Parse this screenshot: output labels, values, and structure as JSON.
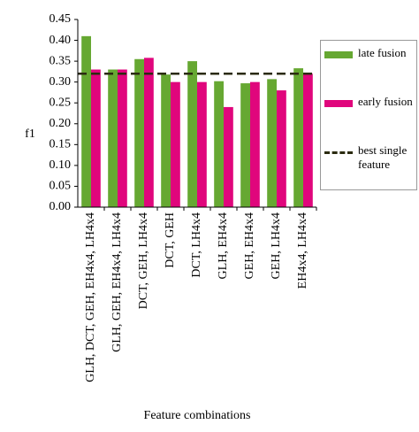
{
  "chart_data": {
    "type": "bar",
    "x_label": "Feature combinations",
    "y_label": "f1",
    "categories": [
      "GLH, DCT, GEH, EH4x4, LH4x4",
      "GLH,  GEH, EH4x4, LH4x4",
      "DCT, GEH, LH4x4",
      "DCT, GEH",
      "DCT, LH4x4",
      "GLH, EH4x4",
      "GEH, EH4x4",
      "GEH, LH4x4",
      "EH4x4, LH4x4"
    ],
    "series": [
      {
        "name": "late fusion",
        "color": "#66a832",
        "values": [
          0.41,
          0.33,
          0.355,
          0.318,
          0.35,
          0.302,
          0.297,
          0.307,
          0.333
        ]
      },
      {
        "name": "early fusion",
        "color": "#e0067c",
        "values": [
          0.33,
          0.33,
          0.358,
          0.3,
          0.3,
          0.24,
          0.3,
          0.28,
          0.32
        ]
      }
    ],
    "reference_line": {
      "name": "best single feature",
      "value": 0.32,
      "color": "#2b2b10"
    },
    "ylim": [
      0,
      0.45
    ],
    "yticks": [
      {
        "value": 0,
        "label": "0.00"
      },
      0.05,
      {
        "value": 0.1,
        "label": "0.10"
      },
      0.15,
      {
        "value": 0.2,
        "label": "0.20"
      },
      0.25,
      {
        "value": 0.3,
        "label": "0.30"
      },
      0.35,
      {
        "value": 0.4,
        "label": "0.40"
      },
      0.45
    ],
    "legend": "right"
  }
}
